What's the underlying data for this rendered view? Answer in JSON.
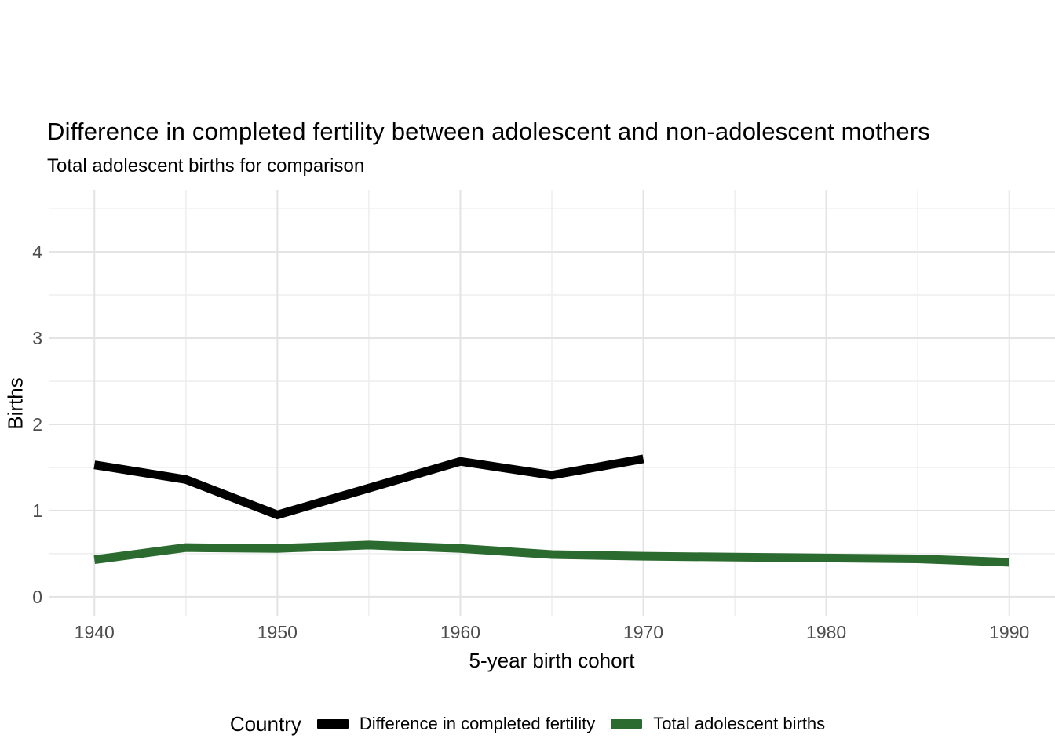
{
  "header": {
    "title": "Difference in completed fertility between adolescent and non-adolescent mothers",
    "subtitle": "Total adolescent births for comparison"
  },
  "chart_data": {
    "type": "line",
    "title": "Difference in completed fertility between adolescent and non-adolescent mothers",
    "subtitle": "Total adolescent births for comparison",
    "xlabel": "5-year birth cohort",
    "ylabel": "Births",
    "xlim": [
      1937.5,
      1992.5
    ],
    "ylim": [
      -0.22,
      4.72
    ],
    "x_ticks": [
      1940,
      1950,
      1960,
      1970,
      1980,
      1990
    ],
    "x_minor_ticks": [
      1945,
      1955,
      1965,
      1975,
      1985
    ],
    "y_ticks": [
      0,
      1,
      2,
      3,
      4
    ],
    "y_minor_ticks": [
      0.5,
      1.5,
      2.5,
      3.5,
      4.5
    ],
    "grid": "on",
    "legend_position": "bottom",
    "series": [
      {
        "name": "Difference in completed fertility",
        "color": "#000000",
        "x": [
          1940,
          1945,
          1950,
          1955,
          1960,
          1965,
          1970
        ],
        "y": [
          1.53,
          1.36,
          0.95,
          1.26,
          1.57,
          1.41,
          1.6
        ]
      },
      {
        "name": "Total adolescent births",
        "color": "#2c6b30",
        "x": [
          1940,
          1945,
          1950,
          1955,
          1960,
          1965,
          1970,
          1975,
          1980,
          1985,
          1990
        ],
        "y": [
          0.43,
          0.57,
          0.56,
          0.6,
          0.56,
          0.49,
          0.47,
          0.46,
          0.45,
          0.44,
          0.4
        ]
      }
    ]
  },
  "legend": {
    "title": "Country",
    "items": [
      {
        "label": "Difference in completed fertility",
        "color": "#000000"
      },
      {
        "label": "Total adolescent births",
        "color": "#2c6b30"
      }
    ]
  },
  "colors": {
    "background": "#ffffff",
    "grid_major": "#e3e3e3",
    "grid_minor": "#efefef",
    "tick_label": "#4d4d4d",
    "text": "#000000"
  }
}
